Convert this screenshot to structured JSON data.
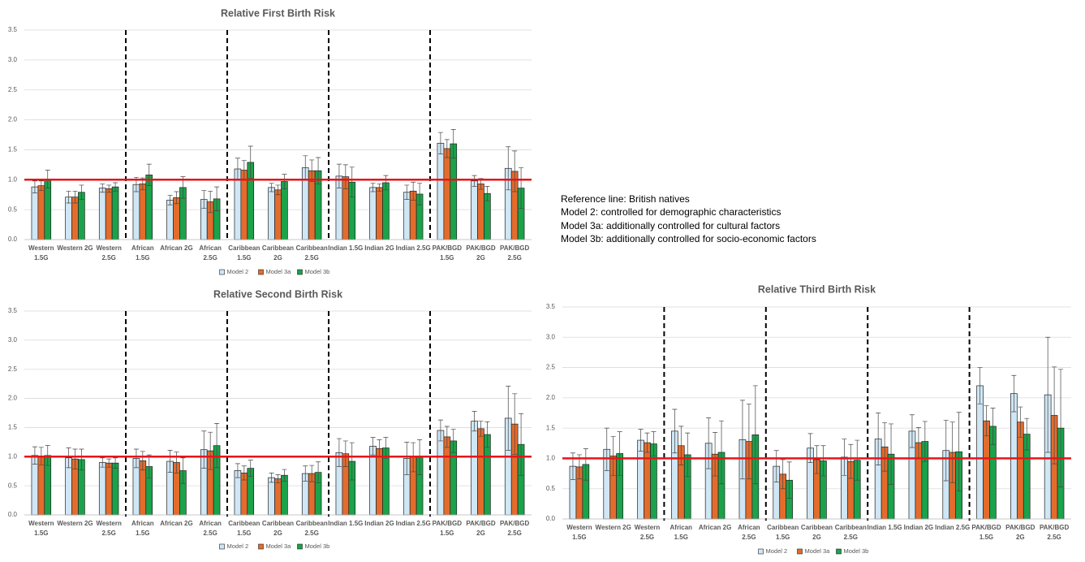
{
  "notes": [
    "Reference line: British natives",
    "Model 2: controlled for demographic characteristics",
    "Model 3a: additionally controlled for cultural factors",
    "Model 3b: additionally controlled for socio-economic factors"
  ],
  "chart_data": [
    {
      "type": "bar",
      "title": "Relative First Birth Risk",
      "categories": [
        "Western 1.5G",
        "Western 2G",
        "Western 2.5G",
        "African 1.5G",
        "African 2G",
        "African 2.5G",
        "Caribbean 1.5G",
        "Caribbean 2G",
        "Caribbean 2.5G",
        "Indian 1.5G",
        "Indian 2G",
        "Indian 2.5G",
        "PAK/BGD 1.5G",
        "PAK/BGD 2G",
        "PAK/BGD 2.5G"
      ],
      "series": [
        {
          "name": "Model 2",
          "color": "#cfe6f5",
          "values": [
            0.88,
            0.71,
            0.86,
            0.92,
            0.66,
            0.67,
            1.18,
            0.87,
            1.2,
            1.06,
            0.87,
            0.79,
            1.61,
            0.98,
            1.19
          ],
          "errors": [
            0.1,
            0.1,
            0.07,
            0.12,
            0.08,
            0.15,
            0.18,
            0.07,
            0.2,
            0.2,
            0.07,
            0.12,
            0.18,
            0.09,
            0.36
          ]
        },
        {
          "name": "Model 3a",
          "color": "#e36c2d",
          "values": [
            0.9,
            0.71,
            0.85,
            0.93,
            0.7,
            0.63,
            1.16,
            0.83,
            1.15,
            1.05,
            0.87,
            0.81,
            1.52,
            0.93,
            1.14
          ],
          "errors": [
            0.08,
            0.1,
            0.06,
            0.1,
            0.1,
            0.18,
            0.16,
            0.08,
            0.18,
            0.2,
            0.06,
            0.15,
            0.15,
            0.09,
            0.34
          ]
        },
        {
          "name": "Model 3b",
          "color": "#1aa34a",
          "values": [
            1.01,
            0.79,
            0.88,
            1.08,
            0.87,
            0.68,
            1.29,
            0.97,
            1.15,
            0.96,
            0.95,
            0.76,
            1.6,
            0.77,
            0.86
          ],
          "errors": [
            0.15,
            0.12,
            0.07,
            0.18,
            0.18,
            0.2,
            0.27,
            0.12,
            0.22,
            0.25,
            0.12,
            0.18,
            0.24,
            0.12,
            0.34
          ]
        }
      ],
      "ylim": [
        0,
        3.5
      ],
      "yticks": [
        {
          "value": 0,
          "label": "0.0"
        },
        {
          "value": 0.5,
          "label": "0.5"
        },
        {
          "value": 1,
          "label": "1.0"
        },
        {
          "value": 1.5,
          "label": "1.5"
        },
        {
          "value": 2,
          "label": "2.0"
        },
        {
          "value": 2.5,
          "label": "2.5"
        },
        {
          "value": 3,
          "label": "3.0"
        },
        {
          "value": 3.5,
          "label": "3.5"
        }
      ],
      "reference_line": {
        "value": 1,
        "color": "#e8141a"
      },
      "grid": true,
      "legend": "bottom"
    },
    {
      "type": "bar",
      "title": "Relative Second Birth Risk",
      "categories": [
        "Western 1.5G",
        "Western 2G",
        "Western 2.5G",
        "African 1.5G",
        "African 2G",
        "African 2.5G",
        "Caribbean 1.5G",
        "Caribbean 2G",
        "Caribbean 2.5G",
        "Indian 1.5G",
        "Indian 2G",
        "Indian 2.5G",
        "PAK/BGD 1.5G",
        "PAK/BGD 2G",
        "PAK/BGD 2.5G"
      ],
      "series": [
        {
          "name": "Model 2",
          "color": "#cfe6f5",
          "values": [
            1.02,
            0.98,
            0.9,
            0.97,
            0.92,
            1.12,
            0.76,
            0.64,
            0.71,
            1.07,
            1.18,
            0.97,
            1.45,
            1.61,
            1.66
          ],
          "errors": [
            0.15,
            0.17,
            0.08,
            0.16,
            0.19,
            0.32,
            0.12,
            0.08,
            0.13,
            0.24,
            0.15,
            0.28,
            0.18,
            0.17,
            0.55
          ]
        },
        {
          "name": "Model 3a",
          "color": "#e36c2d",
          "values": [
            1.01,
            0.96,
            0.89,
            0.93,
            0.9,
            1.1,
            0.72,
            0.62,
            0.71,
            1.05,
            1.14,
            0.99,
            1.34,
            1.48,
            1.56
          ],
          "errors": [
            0.15,
            0.17,
            0.07,
            0.16,
            0.18,
            0.32,
            0.12,
            0.07,
            0.14,
            0.22,
            0.15,
            0.25,
            0.18,
            0.13,
            0.52
          ]
        },
        {
          "name": "Model 3b",
          "color": "#1aa34a",
          "values": [
            1.02,
            0.95,
            0.89,
            0.83,
            0.76,
            1.19,
            0.8,
            0.68,
            0.73,
            0.92,
            1.15,
            0.99,
            1.27,
            1.38,
            1.21
          ],
          "errors": [
            0.17,
            0.18,
            0.09,
            0.2,
            0.22,
            0.38,
            0.14,
            0.1,
            0.18,
            0.32,
            0.18,
            0.3,
            0.2,
            0.22,
            0.53
          ]
        }
      ],
      "ylim": [
        0,
        3.5
      ],
      "yticks": [
        {
          "value": 0,
          "label": "0.0"
        },
        {
          "value": 0.5,
          "label": "0.5"
        },
        {
          "value": 1,
          "label": "1.0"
        },
        {
          "value": 1.5,
          "label": "1.5"
        },
        {
          "value": 2,
          "label": "2.0"
        },
        {
          "value": 2.5,
          "label": "2.5"
        },
        {
          "value": 3,
          "label": "3.0"
        },
        {
          "value": 3.5,
          "label": "3.5"
        }
      ],
      "reference_line": {
        "value": 1,
        "color": "#e8141a"
      },
      "grid": true,
      "legend": "bottom"
    },
    {
      "type": "bar",
      "title": "Relative Third Birth Risk",
      "categories": [
        "Western 1.5G",
        "Western 2G",
        "Western 2.5G",
        "African 1.5G",
        "African 2G",
        "African 2.5G",
        "Caribbean 1.5G",
        "Caribbean 2G",
        "Caribbean 2.5G",
        "Indian 1.5G",
        "Indian 2G",
        "Indian 2.5G",
        "PAK/BGD 1.5G",
        "PAK/BGD 2G",
        "PAK/BGD 2.5G"
      ],
      "series": [
        {
          "name": "Model 2",
          "color": "#cfe6f5",
          "values": [
            0.87,
            1.15,
            1.3,
            1.45,
            1.25,
            1.31,
            0.87,
            1.17,
            1.02,
            1.32,
            1.45,
            1.13,
            2.2,
            2.07,
            2.05
          ],
          "errors": [
            0.22,
            0.35,
            0.18,
            0.36,
            0.42,
            0.65,
            0.26,
            0.24,
            0.3,
            0.43,
            0.27,
            0.5,
            0.3,
            0.3,
            0.95
          ]
        },
        {
          "name": "Model 3a",
          "color": "#e36c2d",
          "values": [
            0.86,
            1.04,
            1.26,
            1.21,
            1.07,
            1.28,
            0.74,
            0.98,
            0.95,
            1.19,
            1.26,
            1.1,
            1.62,
            1.6,
            1.71
          ],
          "errors": [
            0.2,
            0.32,
            0.16,
            0.32,
            0.36,
            0.62,
            0.24,
            0.23,
            0.28,
            0.4,
            0.25,
            0.5,
            0.25,
            0.25,
            0.8
          ]
        },
        {
          "name": "Model 3b",
          "color": "#1aa34a",
          "values": [
            0.9,
            1.08,
            1.24,
            1.06,
            1.1,
            1.39,
            0.64,
            0.96,
            0.97,
            1.07,
            1.28,
            1.11,
            1.53,
            1.4,
            1.5
          ],
          "errors": [
            0.26,
            0.36,
            0.2,
            0.36,
            0.52,
            0.81,
            0.3,
            0.25,
            0.33,
            0.5,
            0.33,
            0.65,
            0.3,
            0.26,
            0.97
          ]
        }
      ],
      "ylim": [
        0,
        3.5
      ],
      "yticks": [
        {
          "value": 0,
          "label": "0.0"
        },
        {
          "value": 0.5,
          "label": "0.5"
        },
        {
          "value": 1,
          "label": "1.0"
        },
        {
          "value": 1.5,
          "label": "1.5"
        },
        {
          "value": 2,
          "label": "2.0"
        },
        {
          "value": 2.5,
          "label": "2.5"
        },
        {
          "value": 3,
          "label": "3.0"
        },
        {
          "value": 3.5,
          "label": "3.5"
        }
      ],
      "reference_line": {
        "value": 1,
        "color": "#e8141a"
      },
      "grid": true,
      "legend": "bottom"
    }
  ]
}
